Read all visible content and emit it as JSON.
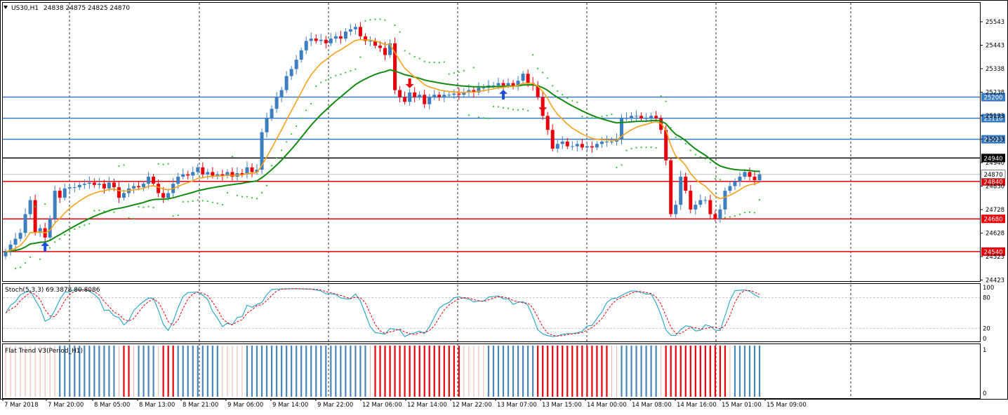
{
  "header": {
    "symbol": "US30,H1",
    "ohlc": "24838 24875 24825 24870",
    "collapse_icon": "triangle-down-icon"
  },
  "colors": {
    "bull_candle": "#3d7ebf",
    "bear_candle": "#e8000b",
    "ma_fast": "#f5a21b",
    "ma_slow": "#128a12",
    "sar": "#2fc22f",
    "level_blue": "#3a7cc2",
    "level_red": "#e8000b",
    "level_black": "#000000",
    "stoch_main": "#1ea3c8",
    "stoch_signal": "#e8000b",
    "flat_blue": "#4a86be",
    "flat_red": "#e8000b",
    "flat_neutral": "#e8b2a8",
    "grid": "#000000"
  },
  "price_axis": {
    "ticks": [
      "25543",
      "25443",
      "25338",
      "25238",
      "25133",
      "25033",
      "24940",
      "24830",
      "24728",
      "24628",
      "24523",
      "24423"
    ]
  },
  "levels": [
    {
      "label": "25200",
      "price": 25200,
      "color": "blue"
    },
    {
      "label": "25110",
      "price": 25110,
      "color": "blue"
    },
    {
      "label": "25020",
      "price": 25020,
      "color": "blue"
    },
    {
      "label": "24940",
      "price": 24940,
      "color": "black"
    },
    {
      "label": "24840",
      "price": 24840,
      "color": "red"
    },
    {
      "label": "24680",
      "price": 24680,
      "color": "red"
    },
    {
      "label": "24540",
      "price": 24540,
      "color": "red"
    }
  ],
  "current_price": {
    "label": "24870",
    "price": 24870
  },
  "stochastic": {
    "title": "Stoch(5,3,3) 69.3878 80.8086",
    "ticks": [
      "100",
      "80",
      "20",
      "0"
    ]
  },
  "flat_trend": {
    "title": "Flat Trend V3(Period_H1)",
    "ticks": [
      "1",
      "0"
    ]
  },
  "time_axis": {
    "labels": [
      "7 Mar 2018",
      "7 Mar 20:00",
      "8 Mar 05:00",
      "8 Mar 13:00",
      "8 Mar 21:00",
      "9 Mar 06:00",
      "9 Mar 14:00",
      "9 Mar 22:00",
      "12 Mar 06:00",
      "12 Mar 14:00",
      "12 Mar 22:00",
      "13 Mar 07:00",
      "13 Mar 15:00",
      "14 Mar 00:00",
      "14 Mar 08:00",
      "14 Mar 16:00",
      "15 Mar 01:00",
      "15 Mar 09:00"
    ]
  },
  "chart_data": {
    "type": "candlestick",
    "timeframe": "H1",
    "closes": [
      24540,
      24570,
      24595,
      24620,
      24700,
      24760,
      24620,
      24640,
      24600,
      24680,
      24800,
      24770,
      24810,
      24815,
      24815,
      24825,
      24830,
      24835,
      24825,
      24830,
      24810,
      24835,
      24815,
      24770,
      24790,
      24810,
      24820,
      24815,
      24830,
      24860,
      24830,
      24790,
      24770,
      24790,
      24830,
      24860,
      24870,
      24865,
      24880,
      24900,
      24870,
      24880,
      24865,
      24870,
      24865,
      24880,
      24860,
      24875,
      24870,
      24900,
      24880,
      24890,
      25050,
      25110,
      25150,
      25200,
      25230,
      25290,
      25320,
      25360,
      25400,
      25440,
      25450,
      25440,
      25445,
      25430,
      25450,
      25460,
      25450,
      25480,
      25490,
      25500,
      25460,
      25440,
      25440,
      25420,
      25410,
      25380,
      25430,
      25230,
      25200,
      25180,
      25220,
      25200,
      25210,
      25170,
      25200,
      25210,
      25200,
      25210,
      25210,
      25215,
      25210,
      25220,
      25230,
      25220,
      25240,
      25240,
      25250,
      25250,
      25260,
      25250,
      25260,
      25250,
      25270,
      25300,
      25260,
      25250,
      25200,
      25120,
      25060,
      24980,
      25000,
      25010,
      24990,
      24990,
      25000,
      24985,
      24990,
      24985,
      25000,
      25010,
      25010,
      25010,
      25020,
      25110,
      25110,
      25120,
      25120,
      25110,
      25110,
      25120,
      25110,
      25060,
      24930,
      24700,
      24740,
      24860,
      24800,
      24720,
      24740,
      24760,
      24760,
      24700,
      24680,
      24720,
      24800,
      24820,
      24840,
      24860,
      24880,
      24860,
      24845,
      24870
    ],
    "ma_fast_range": [
      24650,
      25430
    ],
    "ma_slow_range": [
      24720,
      25220
    ],
    "markers": [
      {
        "type": "buy-arrow",
        "index": 8
      },
      {
        "type": "sell-arrow",
        "index": 82
      },
      {
        "type": "buy-arrow",
        "index": 101
      },
      {
        "type": "sell-arrow",
        "index": 109
      }
    ],
    "ylim": [
      24423,
      25600
    ]
  }
}
